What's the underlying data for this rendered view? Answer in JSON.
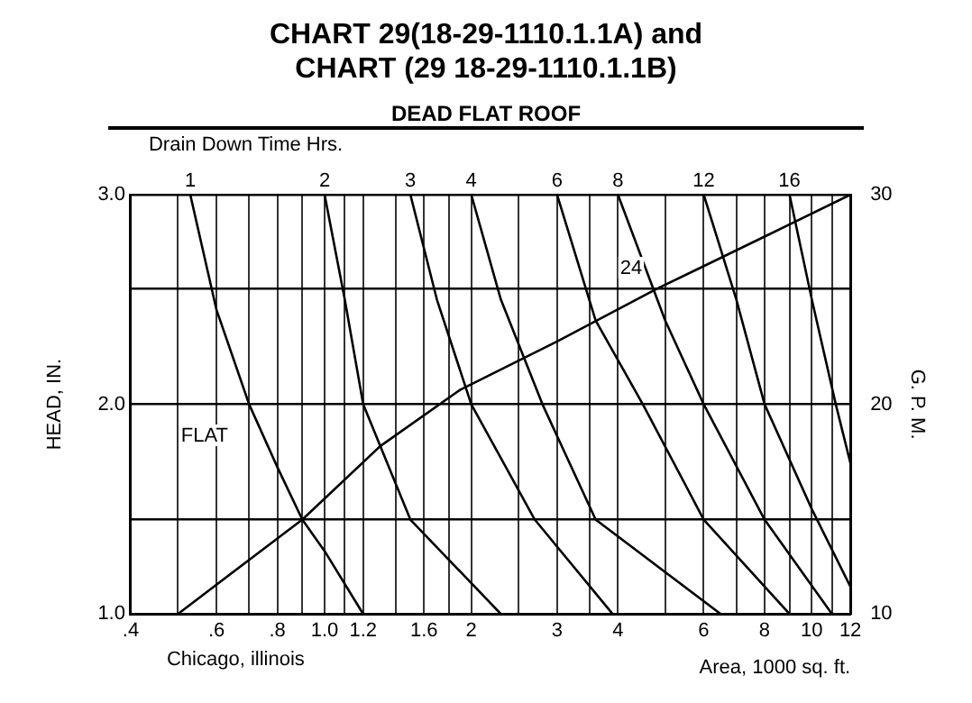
{
  "chart_data": {
    "type": "line",
    "title": "CHART  29(18-29-1110.1.1A) and CHART (29 18-29-1110.1.1B)",
    "subtitle": "DEAD FLAT ROOF",
    "xlabel": "Area, 1000 sq. ft.",
    "ylabel": "HEAD, IN.",
    "y2label": "G. P. M.",
    "annotations": [
      "Drain Down Time Hrs.",
      "Chicago, illinois",
      "FLAT",
      "24"
    ],
    "log": "x",
    "grid": true,
    "legend": false,
    "marker": "none",
    "line_style": "solid",
    "xlim": [
      0.4,
      12
    ],
    "xticks": [
      {
        "value": 0.4,
        "label": ".4"
      },
      {
        "value": 0.5,
        "label": null
      },
      {
        "value": 0.6,
        "label": ".6"
      },
      {
        "value": 0.7,
        "label": null
      },
      {
        "value": 0.8,
        "label": ".8"
      },
      {
        "value": 0.9,
        "label": null
      },
      {
        "value": 1,
        "label": "1.0"
      },
      {
        "value": 1.1,
        "label": null
      },
      {
        "value": 1.2,
        "label": "1.2"
      },
      {
        "value": 1.4,
        "label": null
      },
      {
        "value": 1.6,
        "label": "1.6"
      },
      {
        "value": 1.8,
        "label": null
      },
      2,
      {
        "value": 2.5,
        "label": null
      },
      3,
      {
        "value": 3.5,
        "label": null
      },
      4,
      {
        "value": 5,
        "label": null
      },
      6,
      {
        "value": 7,
        "label": null
      },
      8,
      {
        "value": 9,
        "label": null
      },
      10,
      {
        "value": 11,
        "label": null
      },
      12
    ],
    "ylim": [
      1,
      3
    ],
    "yticks": [
      {
        "value": 1,
        "label": "1.0"
      },
      {
        "value": 1.45,
        "label": null
      },
      {
        "value": 2,
        "label": "2.0"
      },
      {
        "value": 2.55,
        "label": null
      },
      {
        "value": 3,
        "label": "3.0"
      }
    ],
    "y2lim": [
      10,
      30
    ],
    "y2ticks": [
      10,
      20,
      30
    ],
    "series": [
      {
        "name": "1",
        "color": "#000000",
        "x": [
          0.53,
          0.6,
          0.7,
          0.8,
          0.9,
          1.0,
          1.2
        ],
        "values": [
          3.0,
          2.45,
          2.0,
          1.7,
          1.45,
          1.3,
          1.0
        ]
      },
      {
        "name": "2",
        "color": "#000000",
        "x": [
          1.0,
          1.1,
          1.2,
          1.5,
          2.3
        ],
        "values": [
          3.0,
          2.5,
          2.0,
          1.45,
          1.0
        ]
      },
      {
        "name": "3",
        "color": "#000000",
        "x": [
          1.5,
          1.7,
          2.0,
          2.7,
          3.9
        ],
        "values": [
          3.0,
          2.5,
          2.0,
          1.45,
          1.0
        ]
      },
      {
        "name": "4",
        "color": "#000000",
        "x": [
          2.0,
          2.3,
          2.8,
          3.6,
          6.5
        ],
        "values": [
          3.0,
          2.5,
          2.0,
          1.45,
          1.0
        ]
      },
      {
        "name": "6",
        "color": "#000000",
        "x": [
          3.0,
          3.6,
          4.5,
          6.0,
          9.0
        ],
        "values": [
          3.0,
          2.4,
          2.0,
          1.45,
          1.0
        ]
      },
      {
        "name": "8",
        "color": "#000000",
        "x": [
          4.0,
          5.0,
          6.0,
          8.0,
          11.0
        ],
        "values": [
          3.0,
          2.4,
          2.0,
          1.45,
          1.0
        ]
      },
      {
        "name": "12",
        "color": "#000000",
        "x": [
          6.0,
          7.0,
          8.0,
          10.0,
          12.0
        ],
        "values": [
          3.0,
          2.5,
          2.0,
          1.5,
          1.13
        ]
      },
      {
        "name": "16",
        "color": "#000000",
        "x": [
          9.0,
          10.0,
          11.2,
          12.0
        ],
        "values": [
          3.0,
          2.5,
          2.0,
          1.72
        ]
      },
      {
        "color": "#000000",
        "x": [
          0.5,
          0.9,
          1.3,
          1.9,
          3.0,
          4.8,
          8.0,
          12.0
        ],
        "values": [
          1.0,
          1.45,
          1.8,
          2.07,
          2.3,
          2.55,
          2.8,
          3.0
        ]
      }
    ]
  }
}
